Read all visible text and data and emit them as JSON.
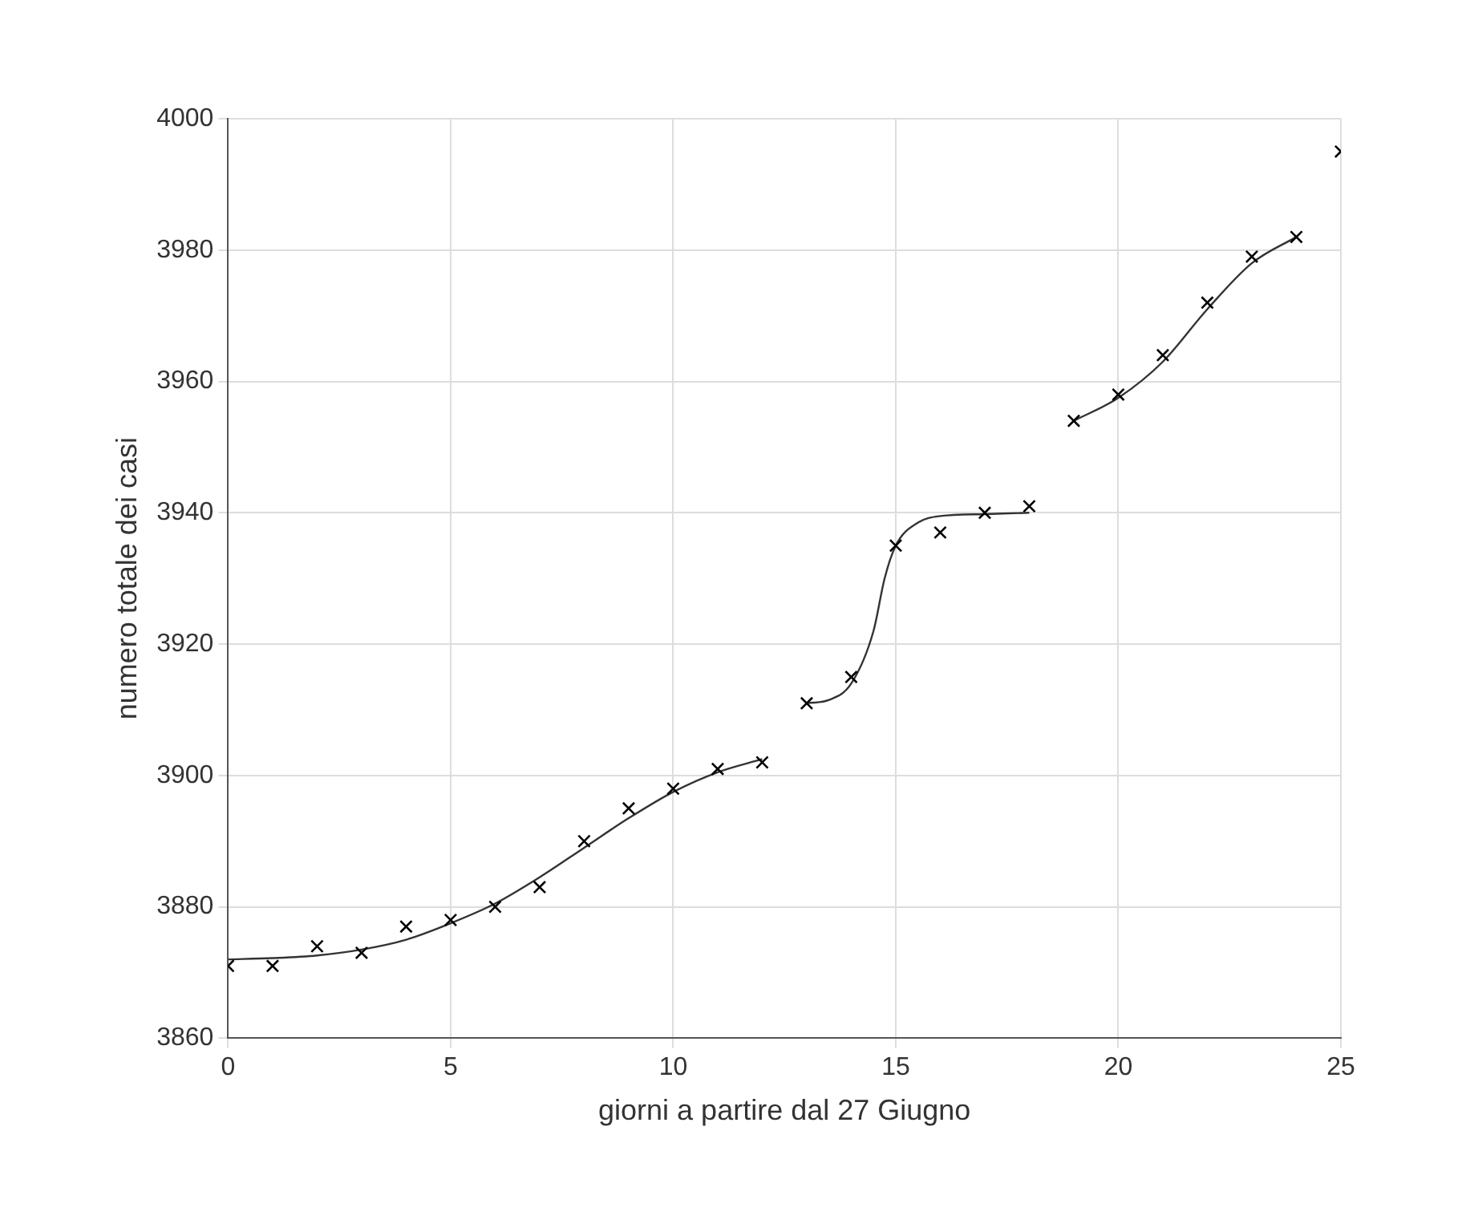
{
  "chart_data": {
    "type": "scatter",
    "xlabel": "giorni a partire dal 27 Giugno",
    "ylabel": "numero totale dei casi",
    "xlim": [
      0,
      25
    ],
    "xticks": [
      0,
      5,
      10,
      15,
      20,
      25
    ],
    "ylim": [
      3860,
      4000
    ],
    "yticks": [
      3860,
      3880,
      3900,
      3920,
      3940,
      3960,
      3980,
      4000
    ],
    "grid": true,
    "series": [
      {
        "type": "scatter",
        "marker": "cross",
        "color": "#000000",
        "x": [
          0,
          1,
          2,
          3,
          4,
          5,
          6,
          7,
          8,
          9,
          10,
          11,
          12,
          13,
          14,
          15,
          16,
          17,
          18,
          19,
          20,
          21,
          22,
          23,
          24,
          25
        ],
        "values": [
          3871,
          3871,
          3874,
          3873,
          3877,
          3878,
          3880,
          3883,
          3890,
          3895,
          3898,
          3901,
          3902,
          3911,
          3915,
          3935,
          3937,
          3940,
          3941,
          3954,
          3958,
          3964,
          3972,
          3979,
          3982,
          3995
        ]
      },
      {
        "type": "line",
        "marker": "none",
        "color": "#333333",
        "x": [
          0,
          1,
          2,
          3,
          4,
          5,
          6,
          7,
          8,
          9,
          10,
          11,
          12
        ],
        "values": [
          3872,
          3872.2,
          3872.6,
          3873.5,
          3875,
          3877.5,
          3880.5,
          3884.5,
          3889,
          3893.5,
          3897.5,
          3900.5,
          3902.5
        ]
      },
      {
        "type": "line",
        "marker": "none",
        "color": "#333333",
        "x": [
          13,
          13.5,
          14,
          14.5,
          14.75,
          15,
          15.5,
          16,
          17,
          18
        ],
        "values": [
          3911,
          3911.5,
          3914,
          3922,
          3930,
          3935,
          3938.5,
          3939.5,
          3939.8,
          3940
        ]
      },
      {
        "type": "line",
        "marker": "none",
        "color": "#333333",
        "x": [
          19,
          20,
          21,
          22,
          23,
          24
        ],
        "values": [
          3954,
          3957.5,
          3963,
          3971,
          3978,
          3982
        ]
      }
    ]
  }
}
